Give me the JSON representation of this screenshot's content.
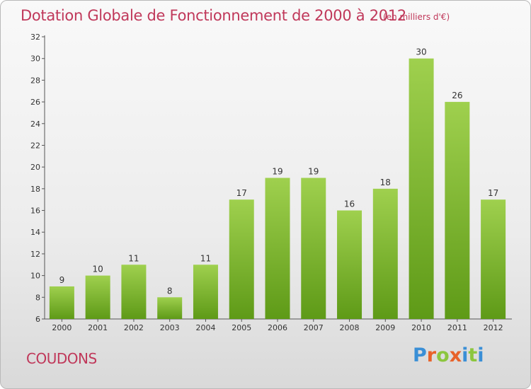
{
  "header": {
    "title": "Dotation Globale de Fonctionnement de 2000 à 2012",
    "subtitle": "(en milliers d'€)"
  },
  "footer": {
    "commune": "COUDONS",
    "logo": {
      "letters": [
        "P",
        "r",
        "o",
        "x",
        "i",
        "t",
        "i"
      ],
      "colors": [
        "#3a8fd6",
        "#e8622a",
        "#8cc63f",
        "#e8622a",
        "#3a8fd6",
        "#8cc63f",
        "#3a8fd6"
      ]
    }
  },
  "chart_data": {
    "type": "bar",
    "title": "Dotation Globale de Fonctionnement de 2000 à 2012",
    "subtitle": "(en milliers d'€)",
    "categories": [
      "2000",
      "2001",
      "2002",
      "2003",
      "2004",
      "2005",
      "2006",
      "2007",
      "2008",
      "2009",
      "2010",
      "2011",
      "2012"
    ],
    "values": [
      9,
      10,
      11,
      8,
      11,
      17,
      19,
      19,
      16,
      18,
      30,
      26,
      17
    ],
    "ylim": [
      6,
      32
    ],
    "yticks": [
      6,
      8,
      10,
      12,
      14,
      16,
      18,
      20,
      22,
      24,
      26,
      28,
      30,
      32
    ],
    "grid": false,
    "colors": {
      "bar_light": "#9fd04e",
      "bar_dark": "#5e9a17"
    }
  }
}
